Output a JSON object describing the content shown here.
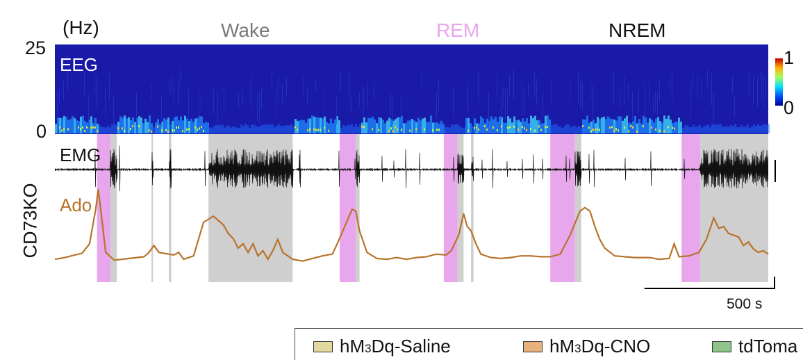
{
  "chart_data": {
    "type": "line",
    "eeg": {
      "label": "EEG",
      "unit_label": "(Hz)",
      "ylim": [
        0,
        25
      ],
      "yticks": [
        "25",
        "0"
      ],
      "colorbar": {
        "max": "1",
        "min": "0"
      }
    },
    "emg": {
      "label": "EMG"
    },
    "ado": {
      "label": "Ado",
      "color": "#b8732a",
      "trace": [
        [
          0,
          0.12
        ],
        [
          40,
          0.14
        ],
        [
          80,
          0.17
        ],
        [
          110,
          0.19
        ],
        [
          140,
          0.3
        ],
        [
          165,
          0.7
        ],
        [
          175,
          0.93
        ],
        [
          185,
          0.7
        ],
        [
          205,
          0.2
        ],
        [
          240,
          0.11
        ],
        [
          300,
          0.13
        ],
        [
          360,
          0.15
        ],
        [
          380,
          0.2
        ],
        [
          400,
          0.28
        ],
        [
          420,
          0.2
        ],
        [
          460,
          0.18
        ],
        [
          480,
          0.17
        ],
        [
          500,
          0.2
        ],
        [
          520,
          0.12
        ],
        [
          560,
          0.16
        ],
        [
          600,
          0.55
        ],
        [
          640,
          0.62
        ],
        [
          680,
          0.52
        ],
        [
          700,
          0.42
        ],
        [
          720,
          0.36
        ],
        [
          740,
          0.25
        ],
        [
          760,
          0.3
        ],
        [
          780,
          0.2
        ],
        [
          800,
          0.3
        ],
        [
          820,
          0.16
        ],
        [
          840,
          0.22
        ],
        [
          860,
          0.12
        ],
        [
          880,
          0.22
        ],
        [
          900,
          0.35
        ],
        [
          920,
          0.2
        ],
        [
          960,
          0.12
        ],
        [
          1000,
          0.1
        ],
        [
          1040,
          0.13
        ],
        [
          1080,
          0.16
        ],
        [
          1120,
          0.18
        ],
        [
          1140,
          0.3
        ],
        [
          1170,
          0.5
        ],
        [
          1200,
          0.7
        ],
        [
          1215,
          0.68
        ],
        [
          1230,
          0.45
        ],
        [
          1260,
          0.2
        ],
        [
          1300,
          0.13
        ],
        [
          1340,
          0.12
        ],
        [
          1380,
          0.14
        ],
        [
          1420,
          0.12
        ],
        [
          1460,
          0.14
        ],
        [
          1500,
          0.15
        ],
        [
          1540,
          0.18
        ],
        [
          1580,
          0.17
        ],
        [
          1600,
          0.22
        ],
        [
          1630,
          0.4
        ],
        [
          1650,
          0.65
        ],
        [
          1665,
          0.5
        ],
        [
          1680,
          0.45
        ],
        [
          1700,
          0.3
        ],
        [
          1720,
          0.18
        ],
        [
          1760,
          0.14
        ],
        [
          1800,
          0.13
        ],
        [
          1840,
          0.14
        ],
        [
          1880,
          0.16
        ],
        [
          1920,
          0.16
        ],
        [
          1960,
          0.15
        ],
        [
          2000,
          0.15
        ],
        [
          2040,
          0.18
        ],
        [
          2080,
          0.4
        ],
        [
          2120,
          0.68
        ],
        [
          2140,
          0.72
        ],
        [
          2160,
          0.68
        ],
        [
          2180,
          0.5
        ],
        [
          2200,
          0.35
        ],
        [
          2220,
          0.25
        ],
        [
          2260,
          0.16
        ],
        [
          2300,
          0.15
        ],
        [
          2340,
          0.14
        ],
        [
          2400,
          0.14
        ],
        [
          2440,
          0.12
        ],
        [
          2480,
          0.13
        ],
        [
          2500,
          0.3
        ],
        [
          2520,
          0.15
        ],
        [
          2560,
          0.16
        ],
        [
          2600,
          0.2
        ],
        [
          2630,
          0.35
        ],
        [
          2660,
          0.6
        ],
        [
          2680,
          0.48
        ],
        [
          2700,
          0.5
        ],
        [
          2720,
          0.42
        ],
        [
          2740,
          0.4
        ],
        [
          2760,
          0.38
        ],
        [
          2780,
          0.28
        ],
        [
          2800,
          0.32
        ],
        [
          2820,
          0.24
        ],
        [
          2840,
          0.2
        ],
        [
          2860,
          0.22
        ],
        [
          2880,
          0.18
        ]
      ],
      "xlim": [
        0,
        2880
      ],
      "ylim": [
        0,
        1
      ]
    },
    "states": [
      {
        "name": "Wake",
        "color": "#7a7a7a"
      },
      {
        "name": "REM",
        "color": "#e8a6ec"
      },
      {
        "name": "NREM",
        "color": "#111111"
      }
    ],
    "state_blocks": [
      {
        "state": "REM",
        "start": 170,
        "end": 225
      },
      {
        "state": "Wake",
        "start": 225,
        "end": 250
      },
      {
        "state": "Wake",
        "start": 390,
        "end": 396
      },
      {
        "state": "Wake",
        "start": 460,
        "end": 470
      },
      {
        "state": "Wake",
        "start": 620,
        "end": 960
      },
      {
        "state": "REM",
        "start": 1150,
        "end": 1215
      },
      {
        "state": "Wake",
        "start": 1215,
        "end": 1230
      },
      {
        "state": "REM",
        "start": 1570,
        "end": 1625
      },
      {
        "state": "Wake",
        "start": 1625,
        "end": 1650
      },
      {
        "state": "Wake",
        "start": 1680,
        "end": 1690
      },
      {
        "state": "REM",
        "start": 2000,
        "end": 2100
      },
      {
        "state": "Wake",
        "start": 2100,
        "end": 2125
      },
      {
        "state": "REM",
        "start": 2530,
        "end": 2605
      },
      {
        "state": "Wake",
        "start": 2605,
        "end": 2880
      }
    ],
    "scale_bar": {
      "label": "500 s",
      "seconds": 500
    },
    "ylabel": "CD73KO"
  },
  "legend": {
    "items": [
      {
        "label_prefix": "hM",
        "label_sub": "3",
        "label_suffix": "Dq-Saline",
        "color": "#e2d9a0"
      },
      {
        "label_prefix": "hM",
        "label_sub": "3",
        "label_suffix": "Dq-CNO",
        "color": "#e8b07a"
      },
      {
        "label_prefix": "tdToma",
        "label_sub": "",
        "label_suffix": "",
        "color": "#8fc48a"
      }
    ]
  }
}
